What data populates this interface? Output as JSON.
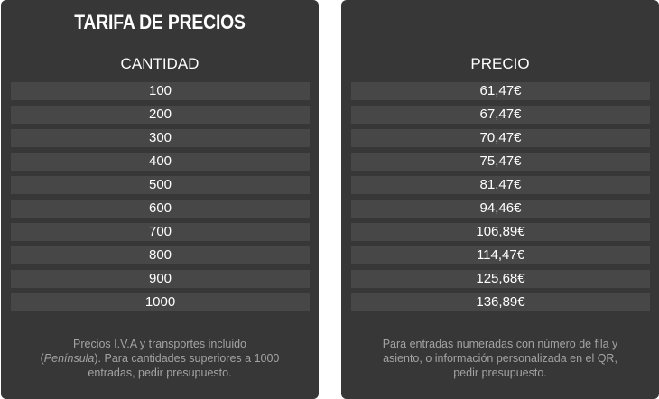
{
  "left_panel": {
    "title": "TARIFA DE PRECIOS",
    "column_header": "CANTIDAD",
    "rows": [
      "100",
      "200",
      "300",
      "400",
      "500",
      "600",
      "700",
      "800",
      "900",
      "1000"
    ],
    "footnote": {
      "line1": "Precios I.V.A y transportes incluido",
      "open_paren": "(",
      "italic": "Península",
      "line2_rest": "). Para cantidades superiores a 1000",
      "line3": "entradas, pedir presupuesto."
    }
  },
  "right_panel": {
    "column_header": "PRECIO",
    "rows": [
      "61,47€",
      "67,47€",
      "70,47€",
      "75,47€",
      "81,47€",
      "94,46€",
      "106,89€",
      "114,47€",
      "125,68€",
      "136,89€"
    ],
    "footnote": {
      "line1": "Para entradas numeradas con número de fila y",
      "line2": "asiento, o información personalizada en el QR,",
      "line3": "pedir presupuesto."
    }
  },
  "colors": {
    "panel_background": "#373737",
    "row_background": "#474747",
    "text_primary": "#ffffff",
    "text_muted": "#a3a3a3"
  }
}
